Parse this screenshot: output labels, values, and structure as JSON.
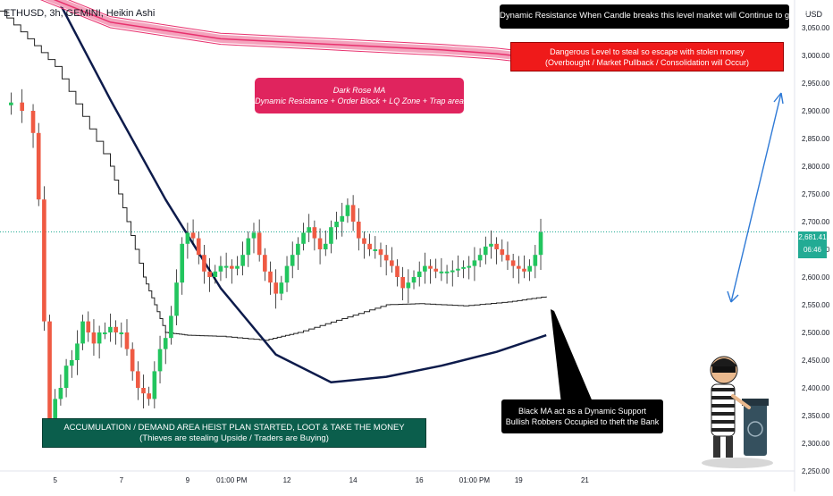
{
  "header": {
    "symbol": "ETHUSD, 3h, GEMINI, Heikin Ashi",
    "currency": "USD"
  },
  "price_tag": {
    "price": "2,681.41",
    "countdown": "06:46",
    "color": "#22ab94"
  },
  "colors": {
    "up": "#22c55e",
    "down": "#ef5a43",
    "rose_ma": "#e8316e",
    "black_ma": "#0d1b4b",
    "blue_arrow": "#2f7ad6"
  },
  "annotations": {
    "top": {
      "l1": "Dynamic Resistance When Candle breaks this level market will Continue to go UP"
    },
    "danger": {
      "l1": "Dangerous Level to steal so escape with stolen money",
      "l2": "(Overbought / Market Pullback / Consolidation will Occur)"
    },
    "rose": {
      "l1": "Dark Rose MA",
      "l2": "Dynamic Resistance + Order Block + LQ Zone + Trap area"
    },
    "accum": {
      "l1": "ACCUMULATION / DEMAND AREA HEIST PLAN STARTED, LOOT & TAKE THE MONEY",
      "l2": "(Thieves are stealing Upside / Traders are Buying)"
    },
    "black": {
      "l1": "Black MA act as a Dynamic Support",
      "l2": "Bullish Robbers Occupied to theft the Bank"
    }
  },
  "chart_data": {
    "type": "line",
    "title": "",
    "ylim": [
      2250,
      3100
    ],
    "y_ticks": [
      2250,
      2300,
      2350,
      2400,
      2450,
      2500,
      2550,
      2600,
      2650,
      2700,
      2750,
      2800,
      2850,
      2900,
      2950,
      3000,
      3050
    ],
    "y_tick_labels": [
      "2,250.00",
      "2,300.00",
      "2,350.00",
      "2,400.00",
      "2,450.00",
      "2,500.00",
      "2,550.00",
      "2,600.00",
      "2,650.00",
      "2,700.00",
      "2,750.00",
      "2,800.00",
      "2,850.00",
      "2,900.00",
      "2,950.00",
      "3,000.00",
      "3,050.00"
    ],
    "x_range": [
      0,
      72
    ],
    "x_ticks": [
      {
        "x": 5,
        "label": "5"
      },
      {
        "x": 11,
        "label": "7"
      },
      {
        "x": 17,
        "label": "9"
      },
      {
        "x": 21,
        "label": "01:00 PM"
      },
      {
        "x": 26,
        "label": "12"
      },
      {
        "x": 32,
        "label": "14"
      },
      {
        "x": 38,
        "label": "16"
      },
      {
        "x": 43,
        "label": "01:00 PM"
      },
      {
        "x": 47,
        "label": "19"
      },
      {
        "x": 53,
        "label": "21"
      }
    ],
    "current_price": 2681.41,
    "series": [
      {
        "points": [
          [
            0.0,
            2910
          ],
          [
            1.0,
            2915
          ],
          [
            2.0,
            2900
          ],
          [
            3.0,
            2860
          ],
          [
            3.5,
            2740
          ],
          [
            4.0,
            2520
          ],
          [
            4.5,
            2330
          ],
          [
            5.0,
            2380
          ],
          [
            5.5,
            2400
          ],
          [
            6.0,
            2440
          ],
          [
            6.5,
            2450
          ],
          [
            7.0,
            2480
          ],
          [
            7.5,
            2520
          ],
          [
            8.0,
            2500
          ],
          [
            8.5,
            2480
          ],
          [
            9.0,
            2500
          ],
          [
            9.5,
            2500
          ],
          [
            10.0,
            2510
          ],
          [
            10.5,
            2500
          ],
          [
            11.0,
            2500
          ],
          [
            11.5,
            2470
          ],
          [
            12.0,
            2430
          ],
          [
            12.5,
            2400
          ],
          [
            13.0,
            2390
          ],
          [
            13.5,
            2380
          ],
          [
            14.0,
            2430
          ],
          [
            14.5,
            2470
          ],
          [
            15.0,
            2490
          ],
          [
            15.5,
            2530
          ],
          [
            16.0,
            2590
          ],
          [
            16.5,
            2660
          ],
          [
            17.0,
            2680
          ],
          [
            17.5,
            2670
          ],
          [
            18.0,
            2640
          ],
          [
            18.5,
            2610
          ],
          [
            19.0,
            2600
          ],
          [
            19.5,
            2610
          ],
          [
            20.0,
            2620
          ],
          [
            20.5,
            2620
          ],
          [
            21.0,
            2615
          ],
          [
            21.5,
            2620
          ],
          [
            22.0,
            2640
          ],
          [
            22.5,
            2670
          ],
          [
            23.0,
            2680
          ],
          [
            23.5,
            2640
          ],
          [
            24.0,
            2610
          ],
          [
            24.5,
            2590
          ],
          [
            25.0,
            2570
          ],
          [
            25.5,
            2590
          ],
          [
            26.0,
            2620
          ],
          [
            26.5,
            2640
          ],
          [
            27.0,
            2660
          ],
          [
            27.5,
            2680
          ],
          [
            28.0,
            2690
          ],
          [
            28.5,
            2670
          ],
          [
            29.0,
            2650
          ],
          [
            29.5,
            2660
          ],
          [
            30.0,
            2690
          ],
          [
            30.5,
            2700
          ],
          [
            31.0,
            2710
          ],
          [
            31.5,
            2730
          ],
          [
            32.0,
            2700
          ],
          [
            32.5,
            2670
          ],
          [
            33.0,
            2660
          ],
          [
            33.5,
            2650
          ],
          [
            34.0,
            2650
          ],
          [
            34.5,
            2640
          ],
          [
            35.0,
            2630
          ],
          [
            35.5,
            2620
          ],
          [
            36.0,
            2600
          ],
          [
            36.5,
            2580
          ],
          [
            37.0,
            2590
          ],
          [
            37.5,
            2600
          ],
          [
            38.0,
            2610
          ],
          [
            38.5,
            2620
          ],
          [
            39.0,
            2615
          ],
          [
            39.5,
            2610
          ],
          [
            40.0,
            2610
          ],
          [
            40.5,
            2610
          ],
          [
            41.0,
            2612
          ],
          [
            41.5,
            2615
          ],
          [
            42.0,
            2618
          ],
          [
            42.5,
            2620
          ],
          [
            43.0,
            2630
          ],
          [
            43.5,
            2640
          ],
          [
            44.0,
            2655
          ],
          [
            44.5,
            2660
          ],
          [
            45.0,
            2650
          ],
          [
            45.5,
            2640
          ],
          [
            46.0,
            2630
          ],
          [
            46.5,
            2620
          ],
          [
            47.0,
            2615
          ],
          [
            47.5,
            2610
          ],
          [
            48.0,
            2620
          ],
          [
            48.5,
            2640
          ],
          [
            49.0,
            2681
          ]
        ]
      },
      {
        "points": [
          [
            0,
            3140
          ],
          [
            10,
            3060
          ],
          [
            20,
            3030
          ],
          [
            30,
            3020
          ],
          [
            40,
            3010
          ],
          [
            45,
            3003
          ],
          [
            49.5,
            2993
          ]
        ]
      },
      {
        "points": [
          [
            0,
            3150
          ],
          [
            5,
            3110
          ],
          [
            10,
            2920
          ],
          [
            15,
            2740
          ],
          [
            20,
            2580
          ],
          [
            25,
            2460
          ],
          [
            30,
            2410
          ],
          [
            35,
            2420
          ],
          [
            40,
            2440
          ],
          [
            45,
            2465
          ],
          [
            49.5,
            2495
          ]
        ]
      },
      {
        "points": [
          [
            0,
            3080
          ],
          [
            5,
            2980
          ],
          [
            10,
            2800
          ],
          [
            13,
            2600
          ],
          [
            15,
            2500
          ],
          [
            17,
            2495
          ],
          [
            20,
            2493
          ],
          [
            24,
            2486
          ],
          [
            27,
            2500
          ],
          [
            31,
            2525
          ],
          [
            35,
            2550
          ],
          [
            38,
            2552
          ],
          [
            42,
            2548
          ],
          [
            46,
            2555
          ],
          [
            49.5,
            2565
          ]
        ]
      }
    ]
  }
}
